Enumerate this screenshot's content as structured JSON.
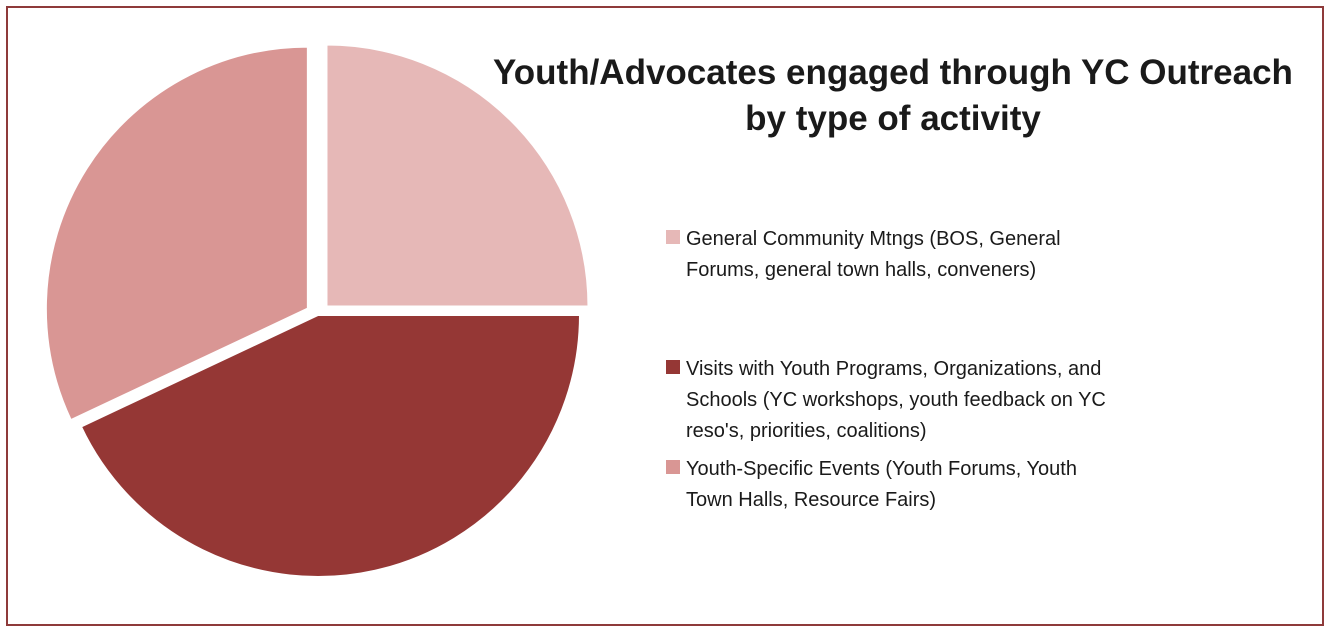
{
  "chart_data": {
    "type": "pie",
    "title": "Youth/Advocates engaged through YC Outreach by type of activity",
    "title_lines": [
      "Youth/Advocates engaged through YC Outreach",
      "by type of activity"
    ],
    "legend_position": "right",
    "slices": [
      {
        "label": "General Community Mtngs (BOS, General Forums, general town halls, conveners)",
        "label_lines": [
          "General Community Mtngs (BOS, General",
          "Forums, general town halls, conveners)"
        ],
        "value": 25,
        "color": "#e6b8b7",
        "exploded": true
      },
      {
        "label": "Visits with Youth Programs, Organizations, and Schools (YC workshops, youth feedback on YC reso's, priorities, coalitions)",
        "label_lines": [
          "Visits with Youth Programs, Organizations, and",
          "Schools (YC workshops, youth feedback on YC",
          "reso's, priorities, coalitions)"
        ],
        "value": 43,
        "color": "#953735",
        "exploded": false
      },
      {
        "label": "Youth-Specific Events (Youth Forums, Youth Town Halls, Resource Fairs)",
        "label_lines": [
          "Youth-Specific Events (Youth Forums, Youth",
          "Town Halls, Resource Fairs)"
        ],
        "value": 32,
        "color": "#d99694",
        "exploded": true
      }
    ]
  },
  "theme": {
    "border_color": "#8e3a3a",
    "text_color": "#1a1a1a"
  }
}
